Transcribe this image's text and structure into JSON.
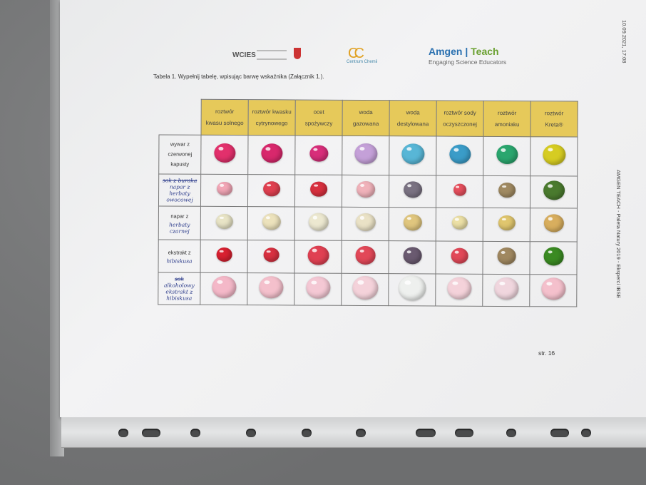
{
  "header": {
    "logo_wcies": "WCIES",
    "logo_cc": "Centrum Chemii",
    "logo_amgen": "Amgen",
    "logo_teach": "Teach",
    "amgen_subtitle": "Engaging Science Educators"
  },
  "caption": "Tabela 1. Wypełnij tabelę, wpisując barwę wskaźnika (Załącznik 1.).",
  "side_date": "10.09.2021, 17:08",
  "side_footer": "AMGEN TEACH - Paleta Natury 2019 - Eksperci IBSE",
  "page_number": "str. 16",
  "columns": [
    {
      "line1": "roztwór",
      "line2": "kwasu solnego"
    },
    {
      "line1": "roztwór kwasku",
      "line2": "cytrynowego"
    },
    {
      "line1": "ocet",
      "line2": "spożywczy"
    },
    {
      "line1": "woda",
      "line2": "gazowana"
    },
    {
      "line1": "woda",
      "line2": "destylowana"
    },
    {
      "line1": "roztwór sody",
      "line2": "oczyszczonej"
    },
    {
      "line1": "roztwór",
      "line2": "amoniaku"
    },
    {
      "line1": "roztwór",
      "line2": "Kreta®"
    }
  ],
  "rows": [
    {
      "printed": "wywar z czerwonej kapusty",
      "struck": "",
      "handwritten": "",
      "colors": [
        "#e2306c",
        "#d8286c",
        "#d82e7a",
        "#c4a0d8",
        "#58b6d6",
        "#3a9cc8",
        "#2aa66e",
        "#d6cc22"
      ]
    },
    {
      "printed": "",
      "struck": "sok z buraka",
      "handwritten": "napar z herbaty owocowej",
      "colors": [
        "#f2a6b6",
        "#e04050",
        "#d8303e",
        "#f0b2ba",
        "#7a7282",
        "#e8505e",
        "#a08a62",
        "#4a7a2e"
      ]
    },
    {
      "printed": "napar z",
      "struck": "",
      "handwritten": "herbaty czarnej",
      "colors": [
        "#e8e4c6",
        "#ece2bc",
        "#ece8d0",
        "#eae2c6",
        "#e0c67e",
        "#ece0a6",
        "#e0c66e",
        "#d8ae5e"
      ]
    },
    {
      "printed": "ekstrakt z",
      "struck": "",
      "handwritten": "hibiskusa",
      "colors": [
        "#d82030",
        "#d83040",
        "#e04052",
        "#e24858",
        "#6a5a70",
        "#e24858",
        "#a08860",
        "#3a8a22"
      ]
    },
    {
      "printed": "",
      "struck": "sok",
      "handwritten": "alkoholowy ekstrakt z hibiskusa",
      "colors": [
        "#f4b8c8",
        "#f4c0cc",
        "#f4c8d4",
        "#f4d2da",
        "#eef0ee",
        "#f4d2da",
        "#f0d6de",
        "#f4c0cc"
      ]
    }
  ]
}
